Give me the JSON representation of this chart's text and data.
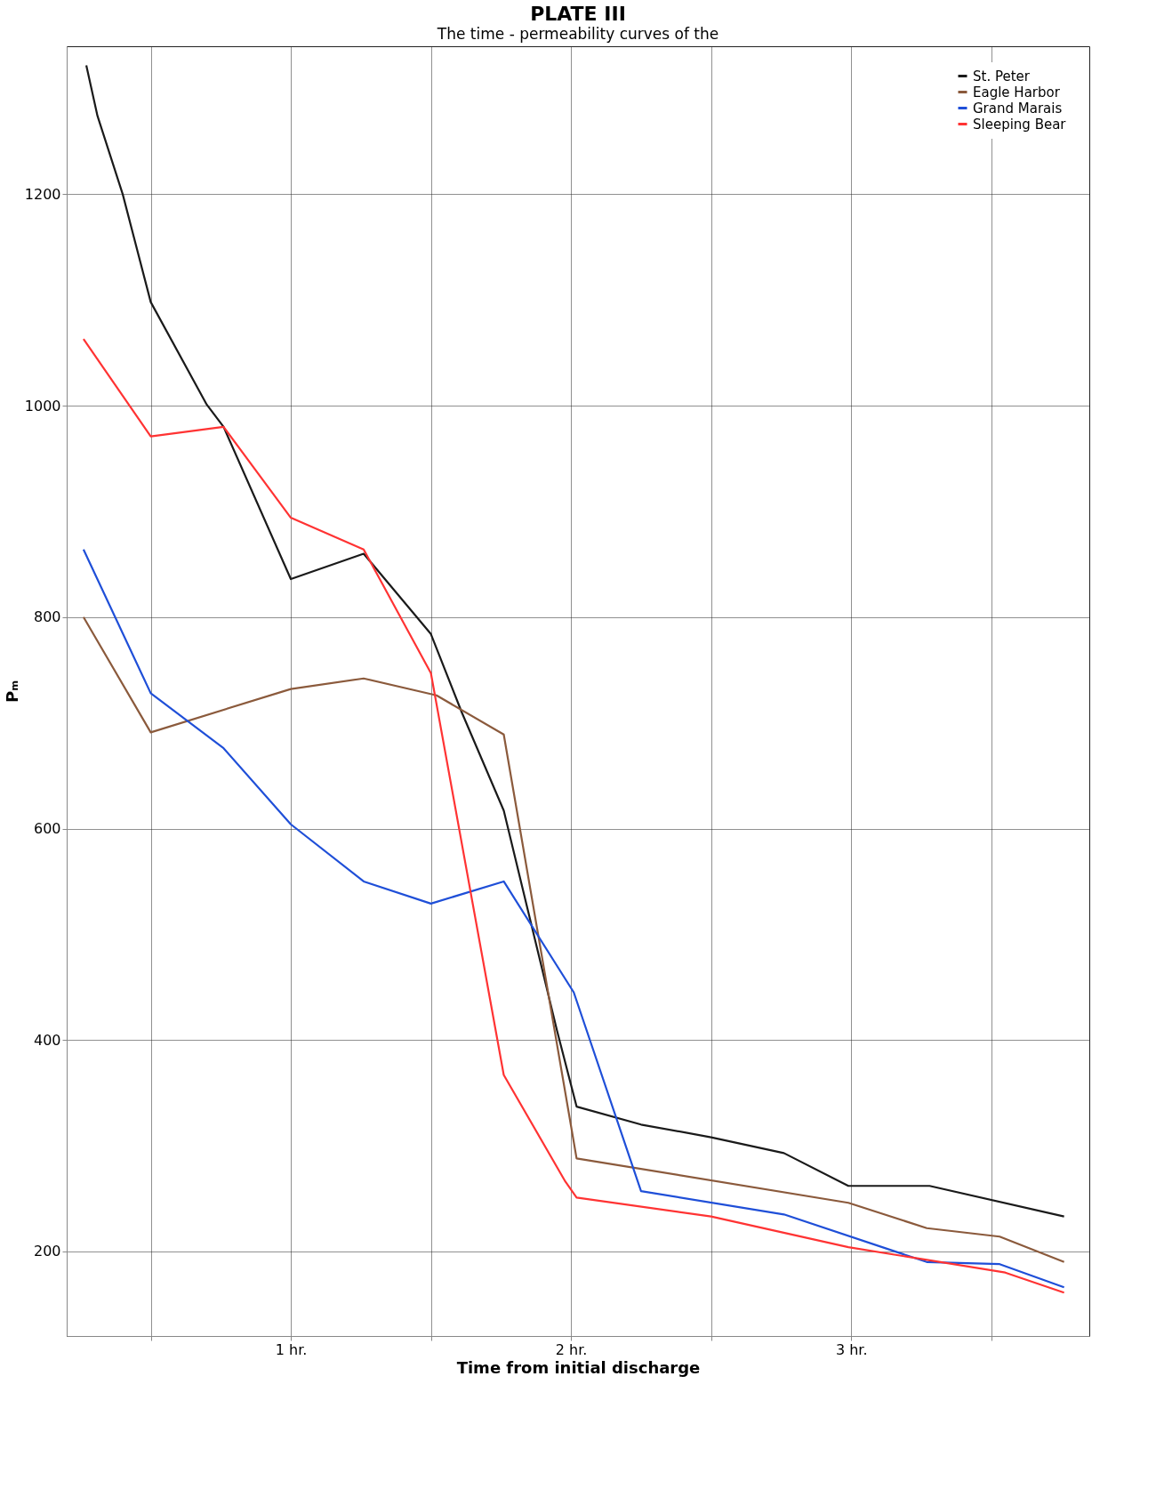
{
  "chart_data": {
    "type": "line",
    "title": "PLATE III",
    "subtitle": "The time - permeability curves of the",
    "xlabel": "Time from initial discharge",
    "ylabel": "Pₘ",
    "xlim": [
      0.2,
      3.85
    ],
    "xticks": [
      {
        "value": 0.5,
        "label": null
      },
      {
        "value": 1,
        "label": "1 hr."
      },
      {
        "value": 1.5,
        "label": null
      },
      {
        "value": 2,
        "label": "2 hr."
      },
      {
        "value": 2.5,
        "label": null
      },
      {
        "value": 3,
        "label": "3 hr."
      },
      {
        "value": 3.5,
        "label": null
      }
    ],
    "ylim": [
      120,
      1340
    ],
    "yticks": [
      200,
      400,
      600,
      800,
      1000,
      1200
    ],
    "grid": true,
    "legend": "top right",
    "marker": "none",
    "line_style": "solid",
    "series": [
      {
        "name": "St. Peter",
        "color": "#1a1a1a",
        "x": [
          0.27,
          0.31,
          0.4,
          0.5,
          0.7,
          0.76,
          1.0,
          1.26,
          1.5,
          1.61,
          1.76,
          1.95,
          2.02,
          2.25,
          2.5,
          2.76,
          2.99,
          3.28,
          3.76
        ],
        "values": [
          1322,
          1274,
          1200,
          1098,
          1001,
          980,
          836,
          860,
          784,
          710,
          617,
          409,
          337,
          320,
          308,
          293,
          262,
          262,
          233
        ]
      },
      {
        "name": "Eagle Harbor",
        "color": "#8b5a3c",
        "x": [
          0.26,
          0.5,
          1.0,
          1.26,
          1.52,
          1.76,
          2.02,
          2.99,
          3.27,
          3.53,
          3.76
        ],
        "values": [
          800,
          691,
          732,
          742,
          726,
          689,
          288,
          246,
          222,
          214,
          190
        ]
      },
      {
        "name": "Grand Marais",
        "color": "#1f4fd8",
        "x": [
          0.26,
          0.5,
          0.76,
          1.0,
          1.26,
          1.5,
          1.76,
          2.01,
          2.25,
          2.76,
          3.27,
          3.53,
          3.76
        ],
        "values": [
          864,
          728,
          676,
          604,
          550,
          529,
          550,
          445,
          257,
          235,
          190,
          188,
          166
        ]
      },
      {
        "name": "Sleeping Bear",
        "color": "#ff3333",
        "x": [
          0.26,
          0.5,
          0.76,
          1.0,
          1.26,
          1.5,
          1.76,
          1.98,
          2.02,
          2.5,
          2.99,
          3.55,
          3.76
        ],
        "values": [
          1063,
          971,
          980,
          894,
          864,
          747,
          367,
          266,
          251,
          233,
          204,
          180,
          161
        ]
      }
    ]
  }
}
